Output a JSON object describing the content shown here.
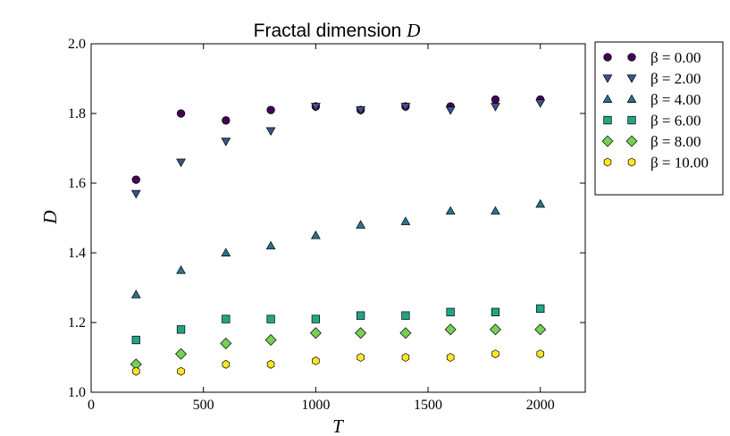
{
  "chart_data": {
    "type": "scatter",
    "title_text": "Fractal dimension ",
    "title_math": "D",
    "xlabel": "T",
    "ylabel": "D",
    "xlim": [
      0,
      2200
    ],
    "ylim": [
      1.0,
      2.0
    ],
    "xticks": [
      0,
      500,
      1000,
      1500,
      2000
    ],
    "xtick_labels": [
      "0",
      "500",
      "1000",
      "1500",
      "2000"
    ],
    "yticks": [
      1.0,
      1.2,
      1.4,
      1.6,
      1.8,
      2.0
    ],
    "ytick_labels": [
      "1.0",
      "1.2",
      "1.4",
      "1.6",
      "1.8",
      "2.0"
    ],
    "grid": false,
    "legend_position": "outside-right",
    "x": [
      200,
      400,
      600,
      800,
      1000,
      1200,
      1400,
      1600,
      1800,
      2000
    ],
    "series": [
      {
        "name": "β = 0.00",
        "marker": "circle",
        "color": "#440154",
        "values": [
          1.61,
          1.8,
          1.78,
          1.81,
          1.82,
          1.81,
          1.82,
          1.82,
          1.84,
          1.84
        ]
      },
      {
        "name": "β = 2.00",
        "marker": "triangle-down",
        "color": "#3b528b",
        "values": [
          1.57,
          1.66,
          1.72,
          1.75,
          1.82,
          1.81,
          1.82,
          1.81,
          1.82,
          1.83
        ]
      },
      {
        "name": "β = 4.00",
        "marker": "triangle-up",
        "color": "#2c728e",
        "values": [
          1.28,
          1.35,
          1.4,
          1.42,
          1.45,
          1.48,
          1.49,
          1.52,
          1.52,
          1.54
        ]
      },
      {
        "name": "β = 6.00",
        "marker": "square",
        "color": "#21a685",
        "values": [
          1.15,
          1.18,
          1.21,
          1.21,
          1.21,
          1.22,
          1.22,
          1.23,
          1.23,
          1.24
        ]
      },
      {
        "name": "β = 8.00",
        "marker": "diamond",
        "color": "#75d054",
        "values": [
          1.08,
          1.11,
          1.14,
          1.15,
          1.17,
          1.17,
          1.17,
          1.18,
          1.18,
          1.18
        ]
      },
      {
        "name": "β = 10.00",
        "marker": "hexagon",
        "color": "#fde725",
        "values": [
          1.06,
          1.06,
          1.08,
          1.08,
          1.09,
          1.1,
          1.1,
          1.1,
          1.11,
          1.11
        ]
      }
    ]
  }
}
